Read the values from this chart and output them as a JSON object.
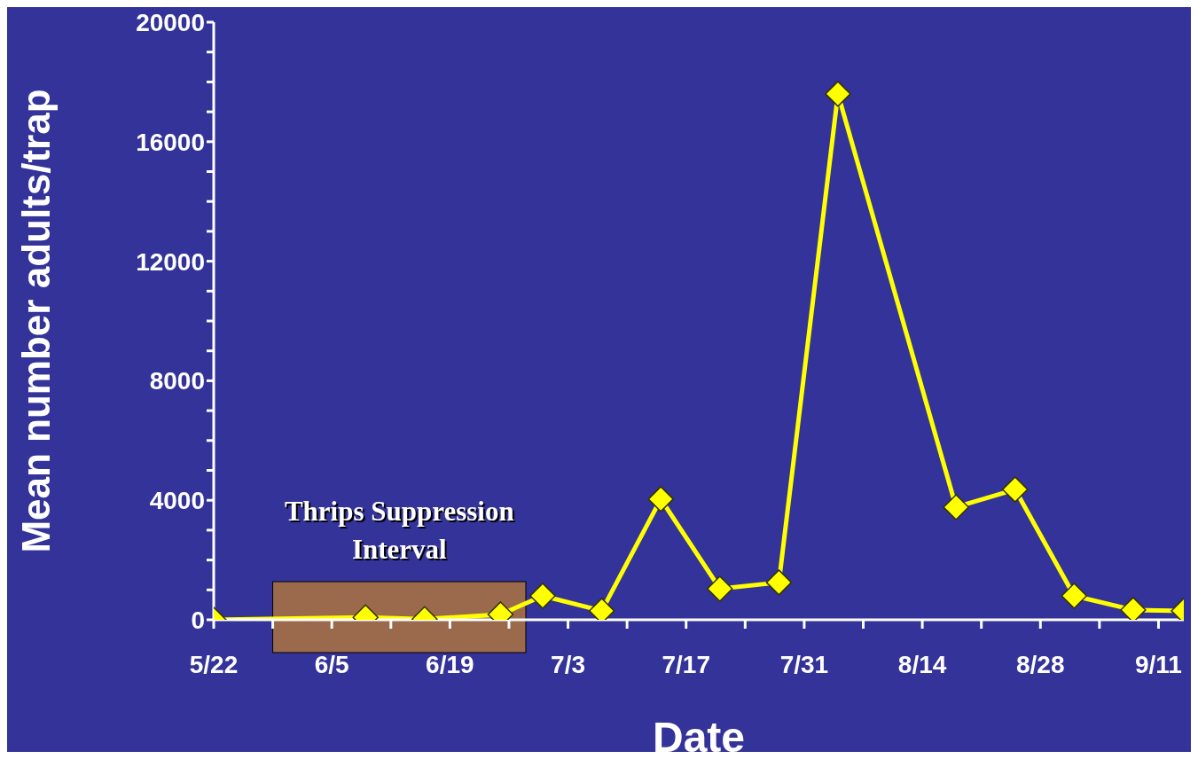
{
  "chart_data": {
    "type": "line",
    "xlabel": "Date",
    "ylabel": "Mean number adults/trap",
    "x": [
      "--05-22",
      "--06-09",
      "--06-16",
      "--06-25",
      "--06-30",
      "--07-07",
      "--07-14",
      "--07-21",
      "--07-28",
      "--08-04",
      "--08-18",
      "--08-25",
      "--09-01",
      "--09-08",
      "--09-14"
    ],
    "series": [
      {
        "color": "#ffff00",
        "values": [
          0,
          80,
          20,
          180,
          800,
          300,
          4040,
          1040,
          1250,
          17600,
          3770,
          4360,
          800,
          330,
          300
        ]
      }
    ],
    "xlim": [
      "--05-22",
      "--09-14"
    ],
    "xticks": [
      {
        "value": "--05-22",
        "label": "5/22"
      },
      {
        "value": "--05-29",
        "label": null
      },
      {
        "value": "--06-05",
        "label": "6/5"
      },
      {
        "value": "--06-12",
        "label": null
      },
      {
        "value": "--06-19",
        "label": "6/19"
      },
      {
        "value": "--06-26",
        "label": null
      },
      {
        "value": "--07-03",
        "label": "7/3"
      },
      {
        "value": "--07-10",
        "label": null
      },
      {
        "value": "--07-17",
        "label": "7/17"
      },
      {
        "value": "--07-24",
        "label": null
      },
      {
        "value": "--07-31",
        "label": "7/31"
      },
      {
        "value": "--08-07",
        "label": null
      },
      {
        "value": "--08-14",
        "label": "8/14"
      },
      {
        "value": "--08-21",
        "label": null
      },
      {
        "value": "--08-28",
        "label": "8/28"
      },
      {
        "value": "--09-04",
        "label": null
      },
      {
        "value": "--09-11",
        "label": "9/11"
      }
    ],
    "ylim": [
      0,
      20000
    ],
    "yticks": [
      0,
      {
        "value": 1000,
        "label": null
      },
      {
        "value": 2000,
        "label": null
      },
      {
        "value": 3000,
        "label": null
      },
      4000,
      {
        "value": 5000,
        "label": null
      },
      {
        "value": 6000,
        "label": null
      },
      {
        "value": 7000,
        "label": null
      },
      8000,
      {
        "value": 9000,
        "label": null
      },
      {
        "value": 10000,
        "label": null
      },
      {
        "value": 11000,
        "label": null
      },
      12000,
      {
        "value": 13000,
        "label": null
      },
      {
        "value": 14000,
        "label": null
      },
      {
        "value": 15000,
        "label": null
      },
      16000,
      {
        "value": 17000,
        "label": null
      },
      {
        "value": 18000,
        "label": null
      },
      {
        "value": 19000,
        "label": null
      },
      20000
    ],
    "bands": [
      {
        "axis": "x",
        "from": "--05-29",
        "to": "--06-28",
        "label": "Thrips Suppression Interval",
        "color": "#9b6a4c"
      }
    ],
    "marker": "diamond",
    "line_style": "solid"
  }
}
